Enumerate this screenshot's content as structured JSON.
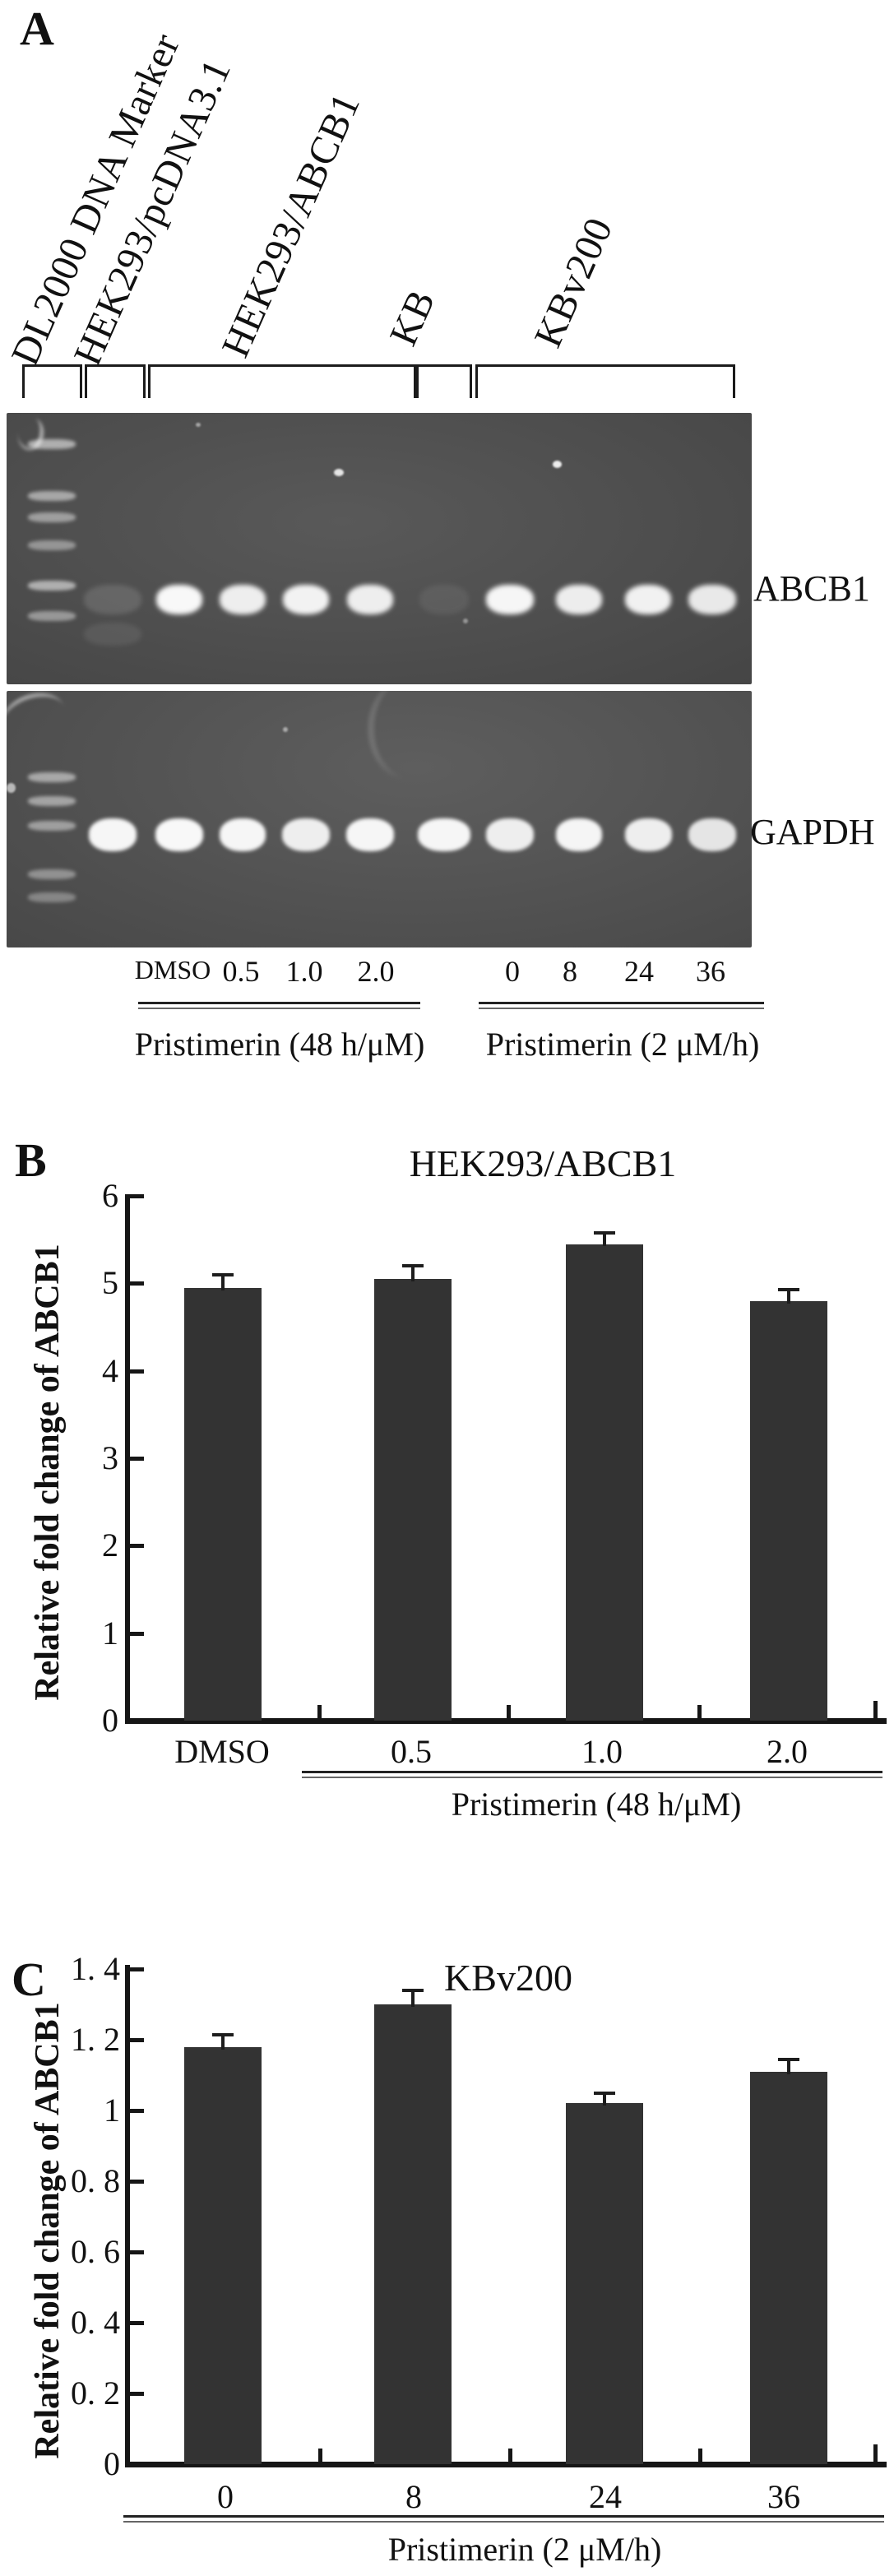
{
  "colors": {
    "bar": "#333333",
    "axis": "#161616",
    "text": "#111111",
    "gel_background": "#505050",
    "band": "#ffffff"
  },
  "panel_a": {
    "letter": "A",
    "group_labels": [
      "DL2000 DNA Marker",
      "HEK293/pcDNA3.1",
      "HEK293/ABCB1",
      "KB",
      "KBv200"
    ],
    "row_labels": {
      "abcb1": "ABCB1",
      "gapdh": "GAPDH"
    },
    "lane_labels": [
      "DMSO",
      "0.5",
      "1.0",
      "2.0",
      "0",
      "8",
      "24",
      "36"
    ],
    "treatments": [
      "Pristimerin (48 h/μM)",
      "Pristimerin (2 μM/h)"
    ],
    "gel_lanes": [
      {
        "name": "DL2000 DNA Marker",
        "type": "ladder",
        "abcb1": 0,
        "gapdh": 0
      },
      {
        "name": "HEK293/pcDNA3.1",
        "abcb1": 0.13,
        "gapdh": 0.95
      },
      {
        "name": "HEK293/ABCB1 DMSO",
        "abcb1": 0.96,
        "gapdh": 0.96
      },
      {
        "name": "HEK293/ABCB1 0.5",
        "abcb1": 0.9,
        "gapdh": 0.95
      },
      {
        "name": "HEK293/ABCB1 1.0",
        "abcb1": 0.93,
        "gapdh": 0.9
      },
      {
        "name": "HEK293/ABCB1 2.0",
        "abcb1": 0.9,
        "gapdh": 0.95
      },
      {
        "name": "KB",
        "abcb1": 0.07,
        "gapdh": 0.95
      },
      {
        "name": "KBv200 0",
        "abcb1": 0.95,
        "gapdh": 0.9
      },
      {
        "name": "KBv200 8",
        "abcb1": 0.9,
        "gapdh": 0.94
      },
      {
        "name": "KBv200 24",
        "abcb1": 0.92,
        "gapdh": 0.9
      },
      {
        "name": "KBv200 36",
        "abcb1": 0.88,
        "gapdh": 0.85
      }
    ]
  },
  "panel_b": {
    "letter": "B"
  },
  "panel_c": {
    "letter": "C"
  },
  "chart_data": [
    {
      "type": "bar",
      "panel": "B",
      "title": "HEK293/ABCB1",
      "ylabel": "Relative fold change of ABCB1",
      "xlabel": "Pristimerin (48 h/μM)",
      "categories": [
        "DMSO",
        "0.5",
        "1.0",
        "2.0"
      ],
      "values": [
        4.95,
        5.05,
        5.45,
        4.8
      ],
      "errors": [
        0.15,
        0.15,
        0.13,
        0.13
      ],
      "ylim": [
        0,
        6
      ],
      "yticks": [
        {
          "value": 0,
          "label": "0"
        },
        {
          "value": 1,
          "label": "1"
        },
        {
          "value": 2,
          "label": "2"
        },
        {
          "value": 3,
          "label": "3"
        },
        {
          "value": 4,
          "label": "4"
        },
        {
          "value": 5,
          "label": "5"
        },
        {
          "value": 6,
          "label": "6"
        }
      ],
      "bar_color": "#333333",
      "grid": false,
      "legend": null,
      "xlabel_underline_spans_categories": [
        "0.5",
        "1.0",
        "2.0"
      ]
    },
    {
      "type": "bar",
      "panel": "C",
      "title": "KBv200",
      "ylabel": "Relative fold change of ABCB1",
      "xlabel": "Pristimerin (2 μM/h)",
      "categories": [
        "0",
        "8",
        "24",
        "36"
      ],
      "values": [
        1.18,
        1.3,
        1.02,
        1.11
      ],
      "errors": [
        0.035,
        0.04,
        0.03,
        0.035
      ],
      "ylim": [
        0,
        1.4
      ],
      "yticks": [
        {
          "value": 0,
          "label": "0"
        },
        {
          "value": 0.2,
          "label": "0. 2"
        },
        {
          "value": 0.4,
          "label": "0. 4"
        },
        {
          "value": 0.6,
          "label": "0. 6"
        },
        {
          "value": 0.8,
          "label": "0. 8"
        },
        {
          "value": 1,
          "label": "1"
        },
        {
          "value": 1.2,
          "label": "1. 2"
        },
        {
          "value": 1.4,
          "label": "1. 4"
        }
      ],
      "bar_color": "#333333",
      "grid": false,
      "legend": null,
      "xlabel_underline_spans_categories": [
        "0",
        "8",
        "24",
        "36"
      ]
    }
  ]
}
